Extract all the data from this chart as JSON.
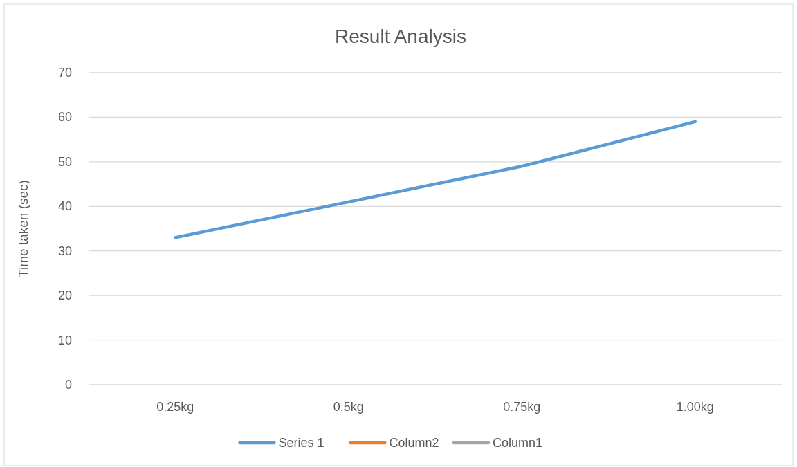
{
  "chart_data": {
    "type": "line",
    "title": "Result Analysis",
    "ylabel": "Time taken (sec)",
    "categories": [
      "0.25kg",
      "0.5kg",
      "0.75kg",
      "1.00kg"
    ],
    "series": [
      {
        "name": "Series 1",
        "color": "#5b9bd5",
        "values": [
          33,
          41,
          49,
          59
        ]
      },
      {
        "name": "Column2",
        "color": "#ed7d31",
        "values": [
          null,
          null,
          null,
          null
        ]
      },
      {
        "name": "Column1",
        "color": "#a5a5a5",
        "values": [
          null,
          null,
          null,
          null
        ]
      }
    ],
    "ylim": [
      0,
      70
    ],
    "yticks": [
      0,
      10,
      20,
      30,
      40,
      50,
      60,
      70
    ],
    "grid": "y",
    "legend": "bottom",
    "marker": "none",
    "line_style": "solid"
  }
}
